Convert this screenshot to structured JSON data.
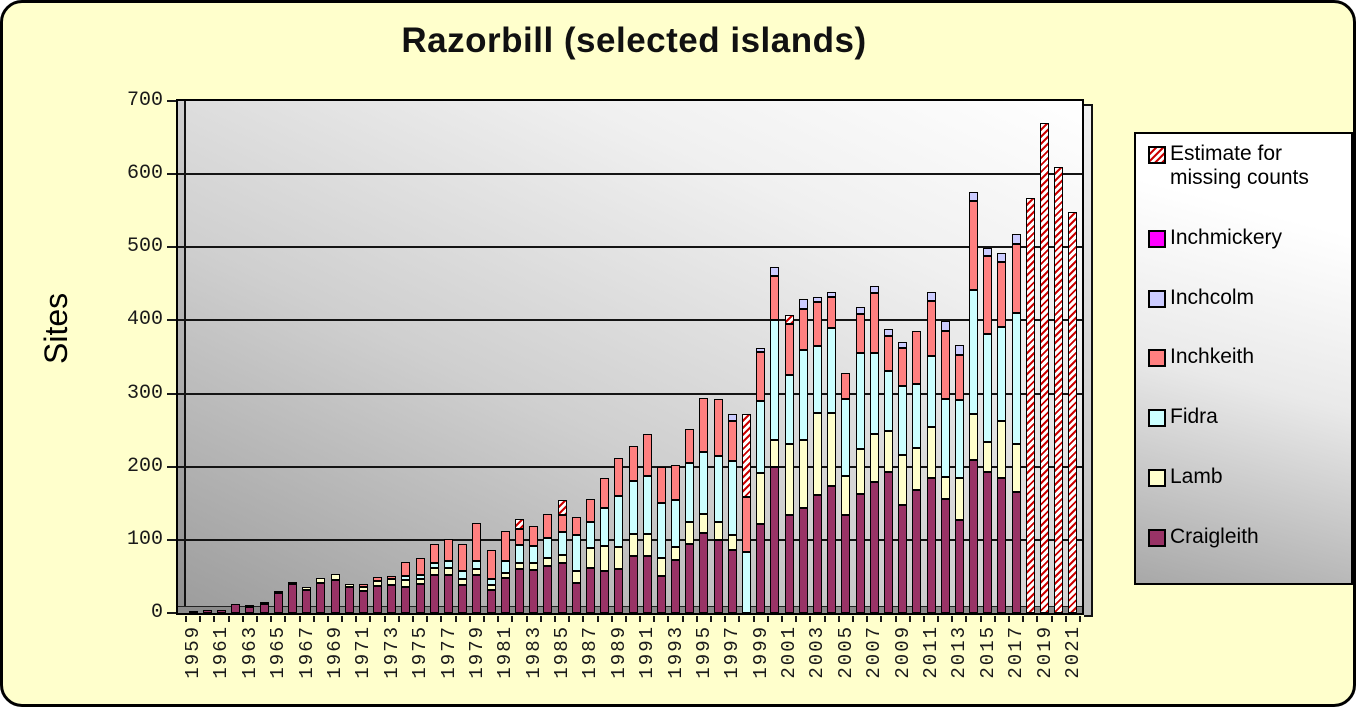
{
  "title": "Razorbill (selected islands)",
  "y_axis": {
    "label": "Sites",
    "tick_labels": [
      "0",
      "100",
      "200",
      "300",
      "400",
      "500",
      "600",
      "700"
    ]
  },
  "x_axis": {
    "tick_labels": [
      "1959",
      "1961",
      "1963",
      "1965",
      "1967",
      "1969",
      "1971",
      "1973",
      "1975",
      "1977",
      "1979",
      "1981",
      "1983",
      "1985",
      "1987",
      "1989",
      "1991",
      "1993",
      "1995",
      "1997",
      "1999",
      "2001",
      "2003",
      "2005",
      "2007",
      "2009",
      "2011",
      "2013",
      "2015",
      "2017",
      "2019",
      "2021"
    ],
    "label_every": 2
  },
  "legend": {
    "items": [
      {
        "id": "estimate",
        "label": "Estimate for missing counts",
        "color": "#FFFFFF",
        "pattern": "red-diagonal-hatch",
        "hatch_color": "#CC0000"
      },
      {
        "id": "inchmickery",
        "label": "Inchmickery",
        "color": "#FF00FF"
      },
      {
        "id": "inchcolm",
        "label": "Inchcolm",
        "color": "#CCCCFF"
      },
      {
        "id": "inchkeith",
        "label": "Inchkeith",
        "color": "#FF8080"
      },
      {
        "id": "fidra",
        "label": "Fidra",
        "color": "#CCFFFF"
      },
      {
        "id": "lamb",
        "label": "Lamb",
        "color": "#FFFFCC"
      },
      {
        "id": "craigleith",
        "label": "Craigleith",
        "color": "#993366"
      }
    ]
  },
  "chart_data": {
    "type": "bar",
    "stacked": true,
    "title": "Razorbill (selected islands)",
    "ylabel": "Sites",
    "ylim": [
      0,
      700
    ],
    "y_step": 100,
    "grid": true,
    "legend_position": "right",
    "categories": [
      1959,
      1960,
      1961,
      1962,
      1963,
      1964,
      1965,
      1966,
      1967,
      1968,
      1969,
      1970,
      1971,
      1972,
      1973,
      1974,
      1975,
      1976,
      1977,
      1978,
      1979,
      1980,
      1981,
      1982,
      1983,
      1984,
      1985,
      1986,
      1987,
      1988,
      1989,
      1990,
      1991,
      1992,
      1993,
      1994,
      1995,
      1996,
      1997,
      1998,
      1999,
      2000,
      2001,
      2002,
      2003,
      2004,
      2005,
      2006,
      2007,
      2008,
      2009,
      2010,
      2011,
      2012,
      2013,
      2014,
      2015,
      2016,
      2017,
      2018,
      2019,
      2020,
      2021
    ],
    "series": [
      {
        "name": "Craigleith",
        "color": "#993366",
        "values": [
          2,
          4,
          4,
          13,
          8,
          13,
          28,
          39,
          32,
          41,
          45,
          35,
          30,
          37,
          38,
          36,
          39,
          52,
          52,
          38,
          52,
          31,
          48,
          60,
          59,
          64,
          68,
          41,
          62,
          58,
          60,
          78,
          78,
          50,
          72,
          95,
          110,
          100,
          86,
          0,
          122,
          199,
          134,
          143,
          161,
          173,
          134,
          163,
          179,
          193,
          148,
          168,
          184,
          156,
          127,
          209,
          193,
          184,
          166,
          0,
          0,
          0,
          0
        ]
      },
      {
        "name": "Lamb",
        "color": "#FFFFCC",
        "values": [
          0,
          0,
          0,
          0,
          1,
          1,
          2,
          3,
          3,
          7,
          8,
          5,
          5,
          7,
          8,
          9,
          8,
          9,
          10,
          9,
          8,
          7,
          7,
          9,
          9,
          11,
          11,
          16,
          27,
          34,
          30,
          30,
          30,
          25,
          18,
          30,
          25,
          25,
          20,
          0,
          70,
          37,
          97,
          93,
          113,
          101,
          54,
          61,
          66,
          56,
          68,
          57,
          70,
          30,
          57,
          63,
          41,
          79,
          65,
          0,
          0,
          0,
          0
        ]
      },
      {
        "name": "Fidra",
        "color": "#CCFFFF",
        "values": [
          0,
          0,
          0,
          0,
          0,
          0,
          0,
          0,
          0,
          0,
          0,
          0,
          0,
          0,
          0,
          6,
          5,
          8,
          9,
          10,
          11,
          8,
          16,
          24,
          23,
          27,
          32,
          50,
          36,
          51,
          70,
          72,
          80,
          75,
          65,
          80,
          85,
          90,
          102,
          84,
          98,
          164,
          95,
          124,
          91,
          116,
          104,
          131,
          111,
          82,
          95,
          88,
          97,
          106,
          107,
          169,
          147,
          128,
          179,
          0,
          0,
          0,
          0
        ]
      },
      {
        "name": "Inchkeith",
        "color": "#FF8080",
        "values": [
          0,
          0,
          0,
          0,
          0,
          0,
          0,
          0,
          0,
          0,
          0,
          0,
          4,
          5,
          5,
          19,
          23,
          25,
          30,
          38,
          52,
          40,
          41,
          22,
          28,
          34,
          23,
          24,
          31,
          42,
          52,
          48,
          57,
          50,
          48,
          47,
          74,
          77,
          55,
          75,
          67,
          61,
          69,
          56,
          60,
          42,
          36,
          54,
          82,
          48,
          52,
          72,
          75,
          93,
          62,
          122,
          107,
          89,
          95,
          0,
          0,
          0,
          0
        ]
      },
      {
        "name": "Inchcolm",
        "color": "#CCCCFF",
        "values": [
          0,
          0,
          0,
          0,
          0,
          0,
          0,
          0,
          0,
          0,
          0,
          0,
          0,
          0,
          0,
          0,
          0,
          0,
          0,
          0,
          0,
          0,
          0,
          0,
          0,
          0,
          0,
          0,
          0,
          0,
          0,
          0,
          0,
          0,
          0,
          0,
          0,
          0,
          9,
          0,
          5,
          12,
          0,
          14,
          7,
          7,
          0,
          10,
          9,
          10,
          8,
          0,
          13,
          14,
          14,
          13,
          11,
          12,
          13,
          0,
          0,
          0,
          0
        ]
      },
      {
        "name": "Inchmickery",
        "color": "#FF00FF",
        "values": [
          0,
          0,
          0,
          0,
          0,
          0,
          0,
          0,
          0,
          0,
          0,
          0,
          0,
          0,
          0,
          0,
          0,
          0,
          0,
          0,
          0,
          0,
          0,
          0,
          0,
          0,
          0,
          0,
          0,
          0,
          0,
          0,
          0,
          0,
          0,
          0,
          0,
          0,
          0,
          0,
          0,
          0,
          0,
          0,
          0,
          0,
          0,
          0,
          0,
          0,
          0,
          0,
          0,
          0,
          0,
          0,
          0,
          0,
          0,
          0,
          0,
          0,
          0
        ]
      },
      {
        "name": "Estimate for missing counts",
        "color": "hatch",
        "values": [
          0,
          0,
          0,
          0,
          0,
          0,
          0,
          0,
          0,
          0,
          0,
          0,
          0,
          0,
          0,
          0,
          0,
          0,
          0,
          0,
          0,
          0,
          0,
          13,
          0,
          0,
          20,
          0,
          0,
          0,
          0,
          0,
          0,
          0,
          0,
          0,
          0,
          0,
          0,
          113,
          0,
          0,
          12,
          0,
          0,
          0,
          0,
          0,
          0,
          0,
          0,
          0,
          0,
          0,
          0,
          0,
          0,
          0,
          0,
          567,
          670,
          610,
          548
        ]
      }
    ]
  }
}
